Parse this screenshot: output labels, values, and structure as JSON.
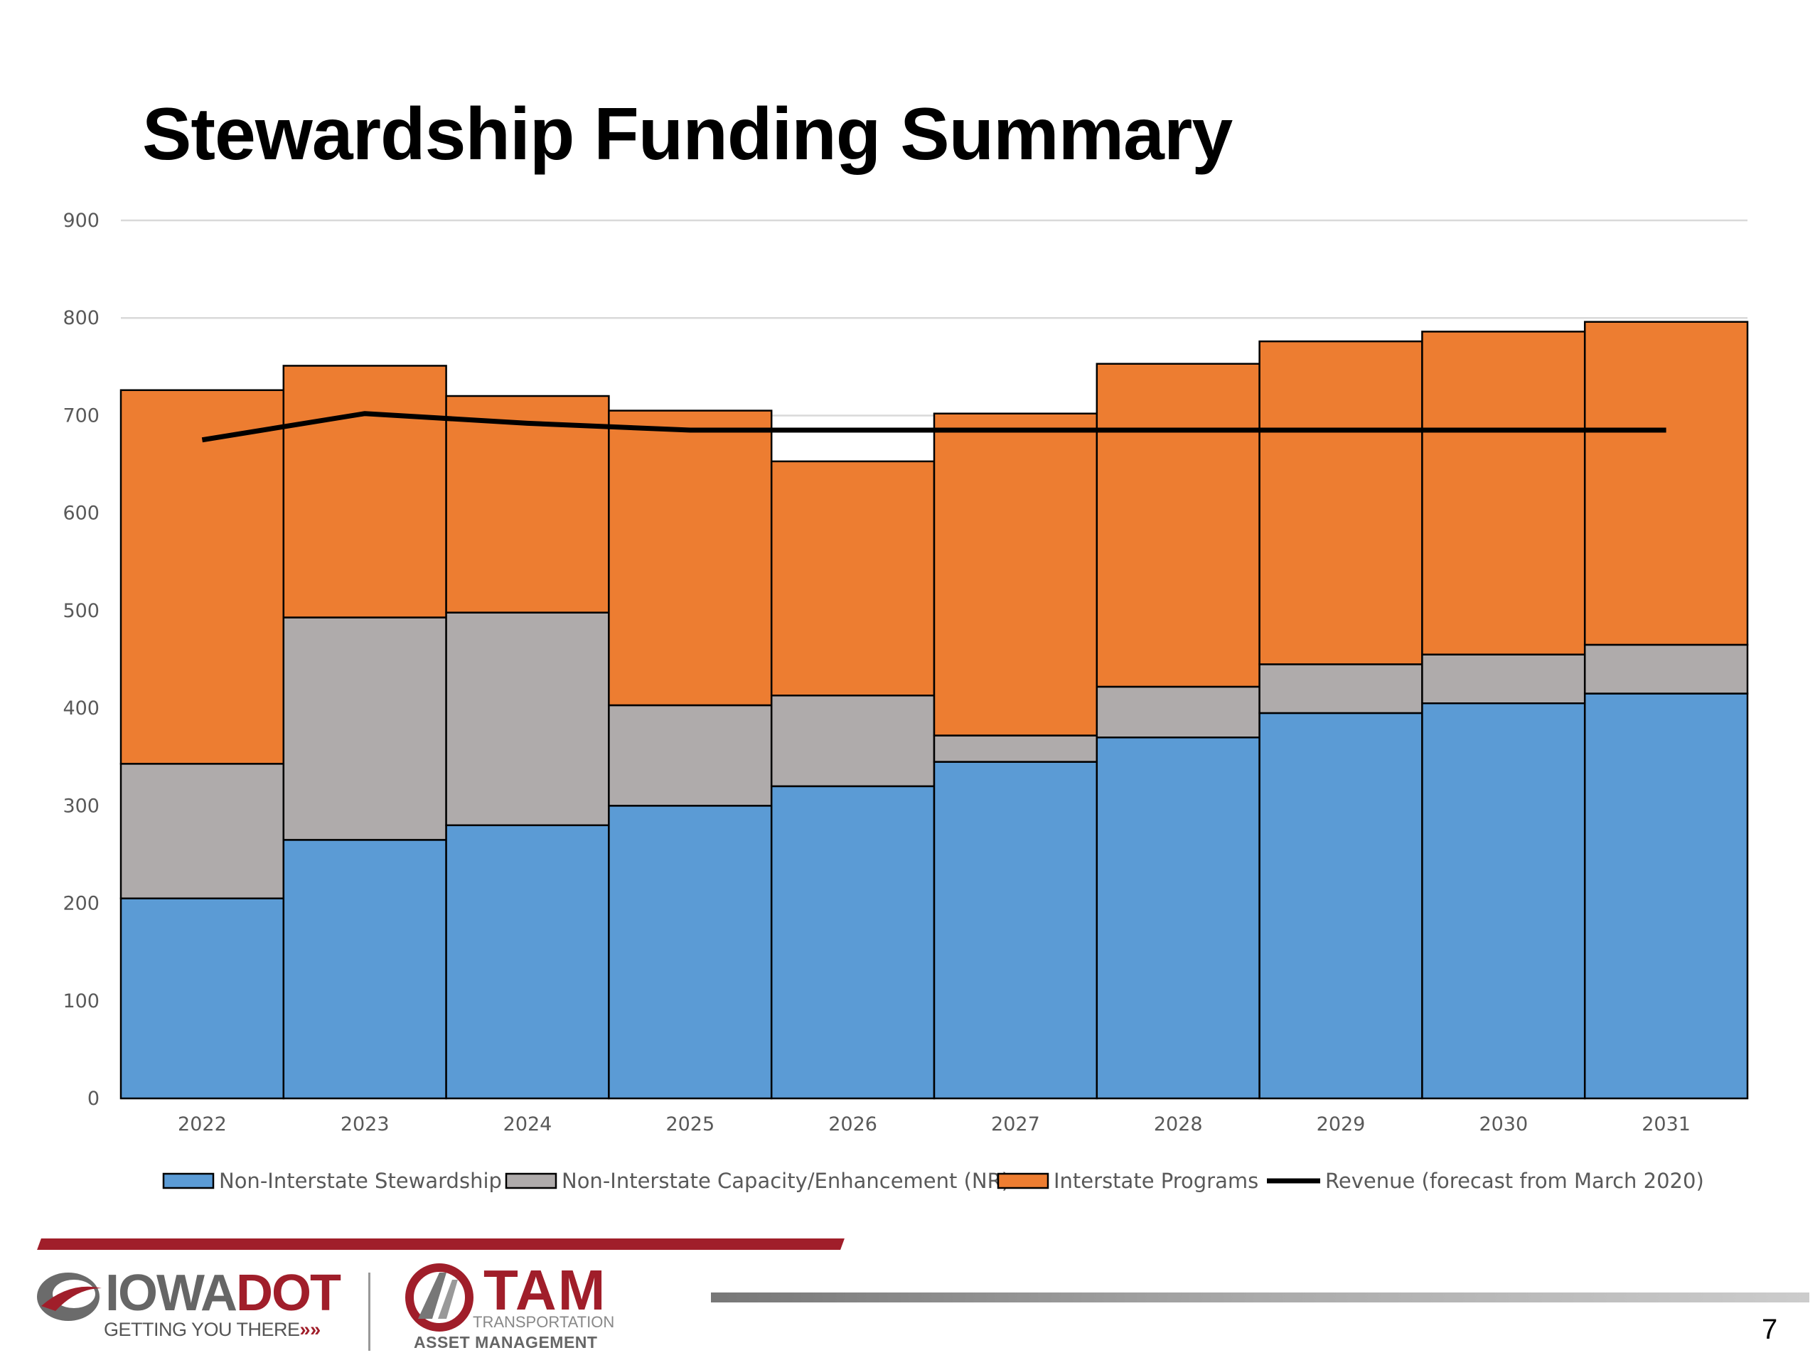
{
  "slide": {
    "title": "Stewardship Funding Summary",
    "page_number": "7"
  },
  "chart_data": {
    "type": "bar",
    "stacked": true,
    "title": "",
    "xlabel": "",
    "ylabel": "",
    "ylim": [
      0,
      900
    ],
    "yticks": [
      0,
      100,
      200,
      300,
      400,
      500,
      600,
      700,
      800,
      900
    ],
    "grid": true,
    "legend_position": "bottom",
    "categories": [
      "2022",
      "2023",
      "2024",
      "2025",
      "2026",
      "2027",
      "2028",
      "2029",
      "2030",
      "2031"
    ],
    "series": [
      {
        "name": "Non-Interstate Stewardship",
        "color": "#5b9bd5",
        "values": [
          205,
          265,
          280,
          300,
          320,
          345,
          370,
          395,
          405,
          415
        ]
      },
      {
        "name": "Non-Interstate Capacity/Enhancement (NR)",
        "color": "#afabab",
        "values": [
          138,
          228,
          218,
          103,
          93,
          27,
          52,
          50,
          50,
          50
        ]
      },
      {
        "name": "Interstate Programs",
        "color": "#ed7d31",
        "values": [
          383,
          258,
          222,
          302,
          240,
          330,
          331,
          331,
          331,
          331
        ]
      }
    ],
    "line_series": {
      "name": "Revenue (forecast from March 2020)",
      "color": "#000000",
      "values": [
        675,
        702,
        692,
        685,
        685,
        685,
        685,
        685,
        685,
        685
      ]
    }
  },
  "footer": {
    "iowa_logo_text": "IOWA",
    "iowa_logo_text2": "DOT",
    "iowa_tagline": "GETTING YOU THERE",
    "tam_logo_text": "TAM",
    "tam_sub1": "TRANSPORTATION",
    "tam_sub2": "ASSET MANAGEMENT"
  }
}
